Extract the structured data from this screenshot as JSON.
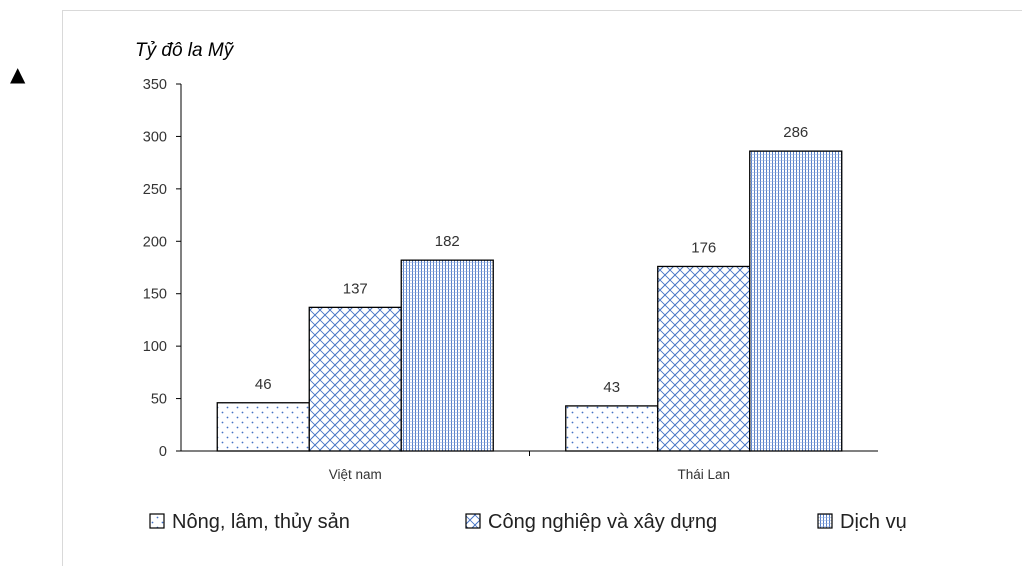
{
  "chart_data": {
    "type": "bar",
    "ylabel": "Tỷ đô la Mỹ",
    "ylim": [
      0,
      350
    ],
    "yticks": [
      0,
      50,
      100,
      150,
      200,
      250,
      300,
      350
    ],
    "categories": [
      "Việt nam",
      "Thái Lan"
    ],
    "series": [
      {
        "name": "Nông, lâm, thủy sản",
        "values": [
          46,
          43
        ],
        "pattern": "dots"
      },
      {
        "name": "Công nghiệp và xây dựng",
        "values": [
          137,
          176
        ],
        "pattern": "crosshatch"
      },
      {
        "name": "Dịch vụ",
        "values": [
          182,
          286
        ],
        "pattern": "grid"
      }
    ],
    "legend": "bottom",
    "grid": false,
    "colors": {
      "bar_fill": "#ffffff",
      "pattern": "#4472c4",
      "outline": "#000000"
    }
  },
  "marker_symbol": "▲"
}
